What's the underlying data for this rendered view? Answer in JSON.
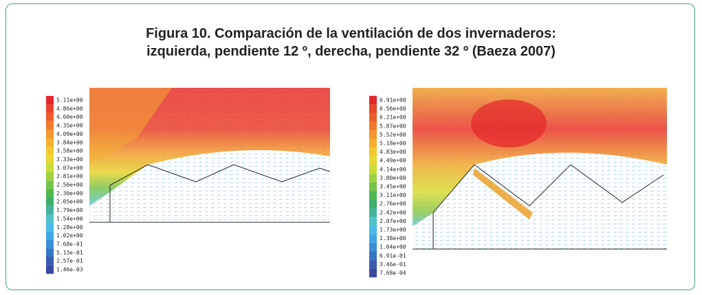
{
  "header": {
    "title_line1": "Figura 10. Comparación de la ventilación de dos invernaderos:",
    "title_line2": "izquierda, pendiente 12 º, derecha, pendiente 32 º (Baeza 2007)"
  },
  "left_legend": [
    "5.11e+00",
    "4.86e+00",
    "4.60e+00",
    "4.35e+00",
    "4.09e+00",
    "3.84e+00",
    "3.58e+00",
    "3.33e+00",
    "3.07e+00",
    "2.81e+00",
    "2.56e+00",
    "2.30e+00",
    "2.05e+00",
    "1.79e+00",
    "1.54e+00",
    "1.28e+00",
    "1.02e+00",
    "7.68e-01",
    "5.13e-01",
    "2.57e-01",
    "1.46e-03"
  ],
  "right_legend": [
    "6.91e+00",
    "6.56e+00",
    "6.21e+00",
    "5.87e+00",
    "5.52e+00",
    "5.18e+00",
    "4.83e+00",
    "4.49e+00",
    "4.14e+00",
    "3.80e+00",
    "3.45e+00",
    "3.11e+00",
    "2.76e+00",
    "2.42e+00",
    "2.07e+00",
    "1.73e+00",
    "1.38e+00",
    "1.04e+00",
    "6.91e-01",
    "3.46e-01",
    "7.68e-04"
  ]
}
